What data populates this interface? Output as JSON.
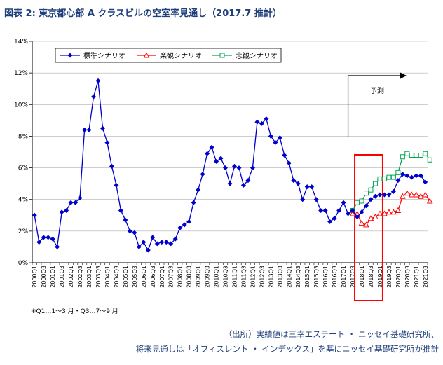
{
  "title": "図表 2: 東京都心部 A クラスビルの空室率見通し（2017.7 推計）",
  "note": "※Q1…1～3 月・Q3…7～9 月",
  "source_line1": "（出所）実績値は三幸エステート ・ ニッセイ基礎研究所、",
  "source_line2": "将来見通しは「オフィスレント ・ インデックス」を基にニッセイ基礎研究所が推計",
  "forecast_label": "予測",
  "colors": {
    "standard": "#0000cc",
    "optimistic": "#ff0000",
    "pessimistic": "#00a651",
    "highlight": "#ff0000",
    "title": "#1f3f7a"
  },
  "chart_data": {
    "type": "line",
    "ylim": [
      0,
      14
    ],
    "yticks": [
      "0%",
      "2%",
      "4%",
      "6%",
      "8%",
      "10%",
      "12%",
      "14%"
    ],
    "ytick_values": [
      0,
      2,
      4,
      6,
      8,
      10,
      12,
      14
    ],
    "x_tick_labels": [
      "2000Q1",
      "2000Q3",
      "2001Q1",
      "2001Q3",
      "2002Q1",
      "2002Q3",
      "2003Q1",
      "2003Q3",
      "2004Q1",
      "2004Q3",
      "2005Q1",
      "2005Q3",
      "2006Q1",
      "2006Q3",
      "2007Q1",
      "2007Q3",
      "2008Q1",
      "2008Q3",
      "2009Q1",
      "2009Q3",
      "2010Q1",
      "2010Q3",
      "2011Q1",
      "2011Q3",
      "2012Q1",
      "2012Q3",
      "2013Q1",
      "2013Q3",
      "2014Q1",
      "2014Q3",
      "2015Q1",
      "2015Q3",
      "2016Q1",
      "2016Q3",
      "2017Q1",
      "2017Q3",
      "2018Q1",
      "2018Q3",
      "2019Q1",
      "2019Q3",
      "2020Q1",
      "2020Q3",
      "2021Q1",
      "2021Q3"
    ],
    "legend_placement": "top-left",
    "series": [
      {
        "name": "標準シナリオ",
        "start_quarter": "2000Q1",
        "marker": "diamond",
        "values": [
          3.0,
          1.3,
          1.6,
          1.6,
          1.5,
          1.0,
          3.2,
          3.3,
          3.8,
          3.8,
          4.1,
          8.4,
          8.4,
          10.5,
          11.5,
          8.5,
          7.6,
          6.1,
          4.9,
          3.3,
          2.7,
          2.0,
          1.9,
          1.0,
          1.3,
          0.8,
          1.6,
          1.2,
          1.3,
          1.3,
          1.2,
          1.5,
          2.2,
          2.4,
          2.6,
          3.8,
          4.6,
          5.6,
          6.9,
          7.3,
          6.4,
          6.6,
          6.0,
          5.0,
          6.1,
          6.0,
          4.9,
          5.2,
          6.0,
          8.9,
          8.8,
          9.1,
          8.0,
          7.6,
          7.9,
          6.8,
          6.3,
          5.2,
          5.0,
          4.0,
          4.8,
          4.8,
          4.0,
          3.3,
          3.3,
          2.6,
          2.8,
          3.3,
          3.8,
          3.1,
          3.3,
          2.9,
          3.2,
          3.6,
          4.0,
          4.2,
          4.3,
          4.3,
          4.3,
          4.5,
          5.2,
          5.6,
          5.5,
          5.4,
          5.5,
          5.5,
          5.1
        ]
      },
      {
        "name": "楽観シナリオ",
        "start_quarter": "2017Q3",
        "marker": "triangle",
        "values": [
          3.1,
          3.1,
          2.5,
          2.4,
          2.8,
          2.9,
          3.1,
          3.1,
          3.2,
          3.2,
          3.3,
          4.2,
          4.4,
          4.3,
          4.3,
          4.2,
          4.3,
          3.9
        ]
      },
      {
        "name": "悲観シナリオ",
        "start_quarter": "2017Q3",
        "marker": "square",
        "values": [
          3.3,
          3.8,
          3.9,
          4.4,
          4.6,
          5.0,
          5.3,
          5.3,
          5.4,
          5.4,
          5.7,
          6.7,
          6.9,
          6.8,
          6.8,
          6.8,
          6.9,
          6.5
        ]
      }
    ]
  }
}
